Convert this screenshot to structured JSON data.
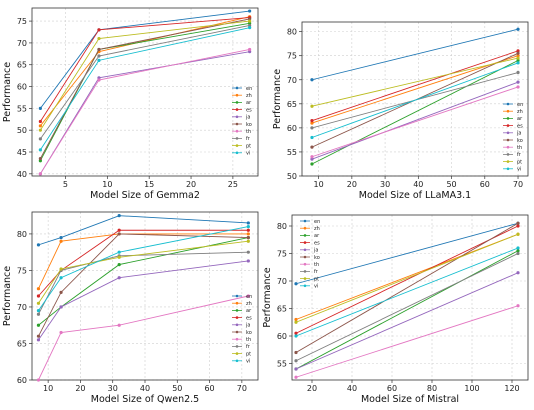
{
  "chart_data": [
    {
      "type": "line",
      "xlabel": "Model Size of Gemma2",
      "ylabel": "Performance",
      "xlim": [
        1,
        28
      ],
      "ylim": [
        39.5,
        78
      ],
      "xticks": [
        5,
        10,
        15,
        20,
        25
      ],
      "yticks": [
        40,
        45,
        50,
        55,
        60,
        65,
        70,
        75
      ],
      "grid": true,
      "legend": "center-right",
      "x": [
        2,
        9,
        27
      ],
      "series": [
        {
          "name": "en",
          "color": "#1f77b4",
          "values": [
            55.0,
            73.0,
            77.3
          ]
        },
        {
          "name": "zh",
          "color": "#ff7f0e",
          "values": [
            51.0,
            68.0,
            76.0
          ]
        },
        {
          "name": "ar",
          "color": "#2ca02c",
          "values": [
            43.0,
            68.5,
            74.5
          ]
        },
        {
          "name": "es",
          "color": "#d62728",
          "values": [
            52.0,
            73.0,
            75.8
          ]
        },
        {
          "name": "ja",
          "color": "#9467bd",
          "values": [
            40.0,
            62.0,
            68.0
          ]
        },
        {
          "name": "ko",
          "color": "#8c564b",
          "values": [
            43.5,
            68.5,
            75.5
          ]
        },
        {
          "name": "th",
          "color": "#e377c2",
          "values": [
            40.0,
            61.5,
            68.5
          ]
        },
        {
          "name": "fr",
          "color": "#7f7f7f",
          "values": [
            48.0,
            67.0,
            74.0
          ]
        },
        {
          "name": "pt",
          "color": "#bcbd22",
          "values": [
            50.0,
            71.0,
            75.0
          ]
        },
        {
          "name": "vi",
          "color": "#17becf",
          "values": [
            45.5,
            66.0,
            73.5
          ]
        }
      ]
    },
    {
      "type": "line",
      "xlabel": "Model Size of LLaMA3.1",
      "ylabel": "Performance",
      "xlim": [
        5,
        73
      ],
      "ylim": [
        50,
        82
      ],
      "xticks": [
        10,
        20,
        30,
        40,
        50,
        60,
        70
      ],
      "yticks": [
        50,
        55,
        60,
        65,
        70,
        75,
        80
      ],
      "grid": true,
      "legend": "center-right",
      "x": [
        8,
        70
      ],
      "series": [
        {
          "name": "en",
          "color": "#1f77b4",
          "values": [
            70.0,
            80.5
          ]
        },
        {
          "name": "zh",
          "color": "#ff7f0e",
          "values": [
            61.0,
            75.0
          ]
        },
        {
          "name": "ar",
          "color": "#2ca02c",
          "values": [
            52.5,
            74.0
          ]
        },
        {
          "name": "es",
          "color": "#d62728",
          "values": [
            61.5,
            76.0
          ]
        },
        {
          "name": "ja",
          "color": "#9467bd",
          "values": [
            53.5,
            69.5
          ]
        },
        {
          "name": "ko",
          "color": "#8c564b",
          "values": [
            56.0,
            75.5
          ]
        },
        {
          "name": "th",
          "color": "#e377c2",
          "values": [
            54.0,
            68.5
          ]
        },
        {
          "name": "fr",
          "color": "#7f7f7f",
          "values": [
            60.0,
            71.5
          ]
        },
        {
          "name": "pt",
          "color": "#bcbd22",
          "values": [
            64.5,
            74.5
          ]
        },
        {
          "name": "vi",
          "color": "#17becf",
          "values": [
            58.0,
            73.5
          ]
        }
      ]
    },
    {
      "type": "line",
      "xlabel": "Model Size of Qwen2.5",
      "ylabel": "Performance",
      "xlim": [
        5,
        75
      ],
      "ylim": [
        60,
        83
      ],
      "xticks": [
        10,
        20,
        30,
        40,
        50,
        60,
        70
      ],
      "yticks": [
        60,
        65,
        70,
        75,
        80
      ],
      "grid": true,
      "legend": "center-right",
      "x": [
        7,
        14,
        32,
        72
      ],
      "series": [
        {
          "name": "en",
          "color": "#1f77b4",
          "values": [
            78.5,
            79.5,
            82.5,
            81.5
          ]
        },
        {
          "name": "zh",
          "color": "#ff7f0e",
          "values": [
            72.5,
            79.0,
            80.0,
            80.0
          ]
        },
        {
          "name": "ar",
          "color": "#2ca02c",
          "values": [
            67.5,
            70.0,
            75.8,
            79.5
          ]
        },
        {
          "name": "es",
          "color": "#d62728",
          "values": [
            71.5,
            75.0,
            80.5,
            80.5
          ]
        },
        {
          "name": "ja",
          "color": "#9467bd",
          "values": [
            65.5,
            70.0,
            74.0,
            76.3
          ]
        },
        {
          "name": "ko",
          "color": "#8c564b",
          "values": [
            66.0,
            72.0,
            80.0,
            79.5
          ]
        },
        {
          "name": "th",
          "color": "#e377c2",
          "values": [
            60.0,
            66.5,
            67.5,
            71.5
          ]
        },
        {
          "name": "fr",
          "color": "#7f7f7f",
          "values": [
            69.0,
            75.0,
            77.0,
            77.5
          ]
        },
        {
          "name": "pt",
          "color": "#bcbd22",
          "values": [
            70.5,
            75.2,
            76.8,
            79.0
          ]
        },
        {
          "name": "vi",
          "color": "#17becf",
          "values": [
            69.5,
            74.0,
            77.5,
            81.0
          ]
        }
      ]
    },
    {
      "type": "line",
      "xlabel": "Model Size of Mistral",
      "ylabel": "Performance",
      "xlim": [
        10,
        128
      ],
      "ylim": [
        52,
        82
      ],
      "xticks": [
        20,
        40,
        60,
        80,
        100,
        120
      ],
      "yticks": [
        55,
        60,
        65,
        70,
        75,
        80
      ],
      "grid": true,
      "legend": "upper-left",
      "x": [
        12,
        123
      ],
      "series": [
        {
          "name": "en",
          "color": "#1f77b4",
          "values": [
            69.5,
            80.5
          ]
        },
        {
          "name": "zh",
          "color": "#ff7f0e",
          "values": [
            63.0,
            78.5
          ]
        },
        {
          "name": "ar",
          "color": "#2ca02c",
          "values": [
            54.0,
            75.5
          ]
        },
        {
          "name": "es",
          "color": "#d62728",
          "values": [
            60.5,
            80.0
          ]
        },
        {
          "name": "ja",
          "color": "#9467bd",
          "values": [
            54.0,
            71.5
          ]
        },
        {
          "name": "ko",
          "color": "#8c564b",
          "values": [
            57.0,
            80.5
          ]
        },
        {
          "name": "th",
          "color": "#e377c2",
          "values": [
            52.5,
            65.5
          ]
        },
        {
          "name": "fr",
          "color": "#7f7f7f",
          "values": [
            55.5,
            75.0
          ]
        },
        {
          "name": "pt",
          "color": "#bcbd22",
          "values": [
            62.5,
            78.5
          ]
        },
        {
          "name": "vi",
          "color": "#17becf",
          "values": [
            60.0,
            76.0
          ]
        }
      ]
    }
  ]
}
